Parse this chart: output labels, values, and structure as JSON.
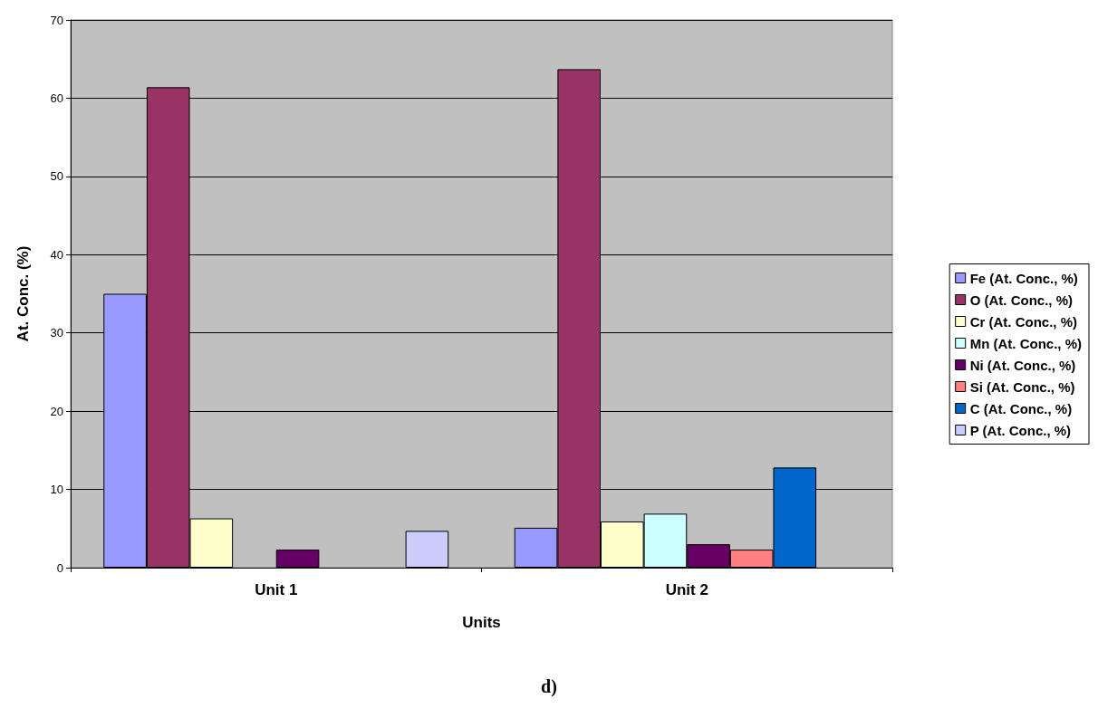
{
  "chart_data": {
    "type": "bar",
    "xlabel": "Units",
    "ylabel": "At. Conc. (%)",
    "categories": [
      "Unit 1",
      "Unit 2"
    ],
    "series": [
      {
        "name": "Fe (At. Conc., %)",
        "color": "#9999ff",
        "values": [
          35,
          5.1
        ]
      },
      {
        "name": "O (At. Conc., %)",
        "color": "#993366",
        "values": [
          61.4,
          63.7
        ]
      },
      {
        "name": "Cr (At. Conc., %)",
        "color": "#ffffcc",
        "values": [
          6.3,
          5.9
        ]
      },
      {
        "name": "Mn (At. Conc., %)",
        "color": "#ccffff",
        "values": [
          null,
          6.9
        ]
      },
      {
        "name": "Ni (At. Conc., %)",
        "color": "#660066",
        "values": [
          2.3,
          3.0
        ]
      },
      {
        "name": "Si (At. Conc., %)",
        "color": "#ff8080",
        "values": [
          null,
          2.3
        ]
      },
      {
        "name": "C (At. Conc., %)",
        "color": "#0066cc",
        "values": [
          null,
          12.8
        ]
      },
      {
        "name": "P (At. Conc., %)",
        "color": "#ccccff",
        "values": [
          4.7,
          null
        ]
      }
    ],
    "ylim": [
      0,
      70
    ],
    "yticks": [
      0,
      10,
      20,
      30,
      40,
      50,
      60,
      70
    ],
    "grid": "y",
    "legend": "right",
    "annotations": [
      "d)"
    ]
  }
}
